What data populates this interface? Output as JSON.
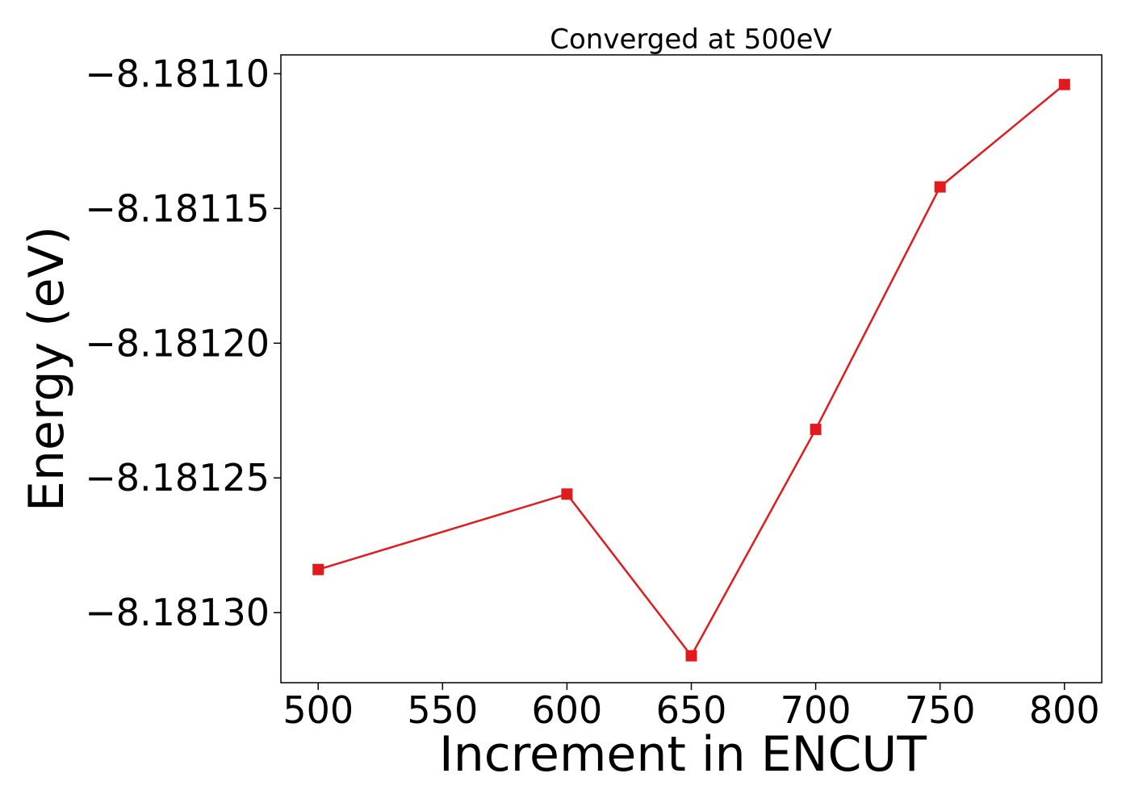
{
  "chart_data": {
    "type": "line",
    "title": "Converged at 500eV",
    "xlabel": "Increment in ENCUT",
    "ylabel": "Energy (eV)",
    "xlim": [
      485,
      815
    ],
    "ylim": [
      -8.181326,
      -8.181093
    ],
    "xticks": [
      500,
      550,
      600,
      650,
      700,
      750,
      800
    ],
    "xtick_labels": [
      "500",
      "550",
      "600",
      "650",
      "700",
      "750",
      "800"
    ],
    "yticks": [
      -8.1811,
      -8.18115,
      -8.1812,
      -8.18125,
      -8.1813
    ],
    "ytick_labels": [
      "−8.18110",
      "−8.18115",
      "−8.18120",
      "−8.18125",
      "−8.18130"
    ],
    "grid": false,
    "series": [
      {
        "color": "#e31a1c",
        "marker": "square",
        "x": [
          500,
          600,
          650,
          700,
          750,
          800
        ],
        "y": [
          -8.181284,
          -8.181256,
          -8.181316,
          -8.181232,
          -8.181142,
          -8.181104
        ]
      }
    ]
  }
}
